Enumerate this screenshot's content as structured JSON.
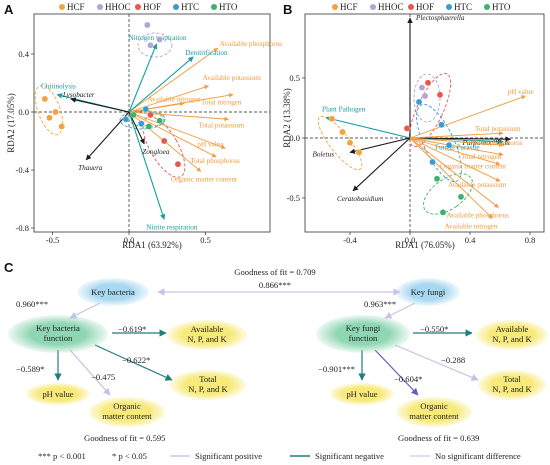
{
  "legend": {
    "groups": [
      {
        "label": "HCF",
        "color": "#f4a23c"
      },
      {
        "label": "HHOC",
        "color": "#b3a3d6"
      },
      {
        "label": "HOF",
        "color": "#e9574a"
      },
      {
        "label": "HTC",
        "color": "#3a9bd0"
      },
      {
        "label": "HTO",
        "color": "#3bb36a"
      }
    ]
  },
  "panels": {
    "A": "A",
    "B": "B",
    "C": "C"
  },
  "chart_data": [
    {
      "type": "scatter",
      "panel": "A",
      "title": "",
      "xlabel": "RDA1 (63.92%)",
      "ylabel": "RDA2 (17.05%)",
      "xlim": [
        -0.62,
        0.92
      ],
      "ylim": [
        -0.82,
        0.68
      ],
      "xticks": [
        "-0.5",
        "0.0",
        "0.5"
      ],
      "yticks": [
        "-0.8",
        "-0.4",
        "0.0",
        "0.4"
      ],
      "biplot_arrows": [
        {
          "label": "Available phosphorus",
          "x": 0.58,
          "y": 0.44,
          "kind": "env"
        },
        {
          "label": "Available potassium",
          "x": 0.52,
          "y": 0.18,
          "kind": "env"
        },
        {
          "label": "Total nitrogen",
          "x": 0.68,
          "y": 0.12,
          "kind": "env"
        },
        {
          "label": "Available nitrogen",
          "x": 0.36,
          "y": 0.06,
          "kind": "env"
        },
        {
          "label": "Total potassium",
          "x": 0.65,
          "y": -0.05,
          "kind": "env"
        },
        {
          "label": "pH value",
          "x": 0.63,
          "y": -0.25,
          "kind": "env"
        },
        {
          "label": "Total phosphorus",
          "x": 0.57,
          "y": -0.31,
          "kind": "env"
        },
        {
          "label": "Organic matter content",
          "x": 0.47,
          "y": -0.41,
          "kind": "env"
        },
        {
          "label": "Nitrogen respiration",
          "x": 0.18,
          "y": 0.47,
          "kind": "func"
        },
        {
          "label": "Denitrification",
          "x": 0.42,
          "y": 0.38,
          "kind": "func"
        },
        {
          "label": "Chitinolysis",
          "x": -0.47,
          "y": 0.12,
          "kind": "func"
        },
        {
          "label": "Nitrite respiration",
          "x": 0.23,
          "y": -0.74,
          "kind": "func"
        },
        {
          "label": "Lysobacter",
          "x": -0.38,
          "y": 0.09,
          "kind": "taxon"
        },
        {
          "label": "Thauera",
          "x": -0.28,
          "y": -0.33,
          "kind": "taxon"
        },
        {
          "label": "Zoogloea",
          "x": 0.1,
          "y": -0.22,
          "kind": "taxon"
        }
      ],
      "points": [
        {
          "group": "HCF",
          "x": -0.55,
          "y": 0.09
        },
        {
          "group": "HCF",
          "x": -0.48,
          "y": 0.0
        },
        {
          "group": "HCF",
          "x": -0.44,
          "y": -0.1
        },
        {
          "group": "HCF",
          "x": -0.52,
          "y": -0.04
        },
        {
          "group": "HHOC",
          "x": 0.12,
          "y": 0.6
        },
        {
          "group": "HHOC",
          "x": 0.2,
          "y": 0.5
        },
        {
          "group": "HHOC",
          "x": 0.14,
          "y": 0.46
        },
        {
          "group": "HOF",
          "x": 0.14,
          "y": -0.02
        },
        {
          "group": "HOF",
          "x": 0.23,
          "y": -0.2
        },
        {
          "group": "HOF",
          "x": 0.32,
          "y": -0.36
        },
        {
          "group": "HTC",
          "x": -0.02,
          "y": -0.05
        },
        {
          "group": "HTC",
          "x": 0.08,
          "y": -0.08
        },
        {
          "group": "HTC",
          "x": 0.11,
          "y": 0.02
        },
        {
          "group": "HTO",
          "x": 0.03,
          "y": -0.02
        },
        {
          "group": "HTO",
          "x": 0.13,
          "y": -0.1
        },
        {
          "group": "HTO",
          "x": 0.2,
          "y": -0.06
        }
      ]
    },
    {
      "type": "scatter",
      "panel": "B",
      "title": "",
      "xlabel": "RDA1 (76.05%)",
      "ylabel": "RDA2 (13.38%)",
      "xlim": [
        -0.62,
        0.86
      ],
      "ylim": [
        -0.86,
        1.12
      ],
      "xticks": [
        "-0.4",
        "0.0",
        "0.4",
        "0.8"
      ],
      "yticks": [
        "-0.5",
        "0.0",
        "0.5"
      ],
      "biplot_arrows": [
        {
          "label": "Plectosphaerella",
          "x": 0.0,
          "y": 1.0,
          "kind": "taxon"
        },
        {
          "label": "Plant Pathogen",
          "x": -0.56,
          "y": 0.17,
          "kind": "func"
        },
        {
          "label": "Fungal Parasite",
          "x": 0.62,
          "y": -0.03,
          "kind": "func"
        },
        {
          "label": "Boletus",
          "x": -0.4,
          "y": -0.12,
          "kind": "taxon"
        },
        {
          "label": "Purpureocillium",
          "x": 0.67,
          "y": -0.01,
          "kind": "taxon"
        },
        {
          "label": "Ceratobasidium",
          "x": -0.38,
          "y": -0.44,
          "kind": "taxon"
        },
        {
          "label": "pH value",
          "x": 0.77,
          "y": 0.35,
          "kind": "env"
        },
        {
          "label": "Total potassium",
          "x": 0.62,
          "y": 0.04,
          "kind": "env"
        },
        {
          "label": "Total phosphorus",
          "x": 0.62,
          "y": -0.06,
          "kind": "env"
        },
        {
          "label": "Total nitrogen",
          "x": 0.62,
          "y": -0.14,
          "kind": "env"
        },
        {
          "label": "Organic matter content",
          "x": 0.6,
          "y": -0.22,
          "kind": "env"
        },
        {
          "label": "Available potassium",
          "x": 0.6,
          "y": -0.36,
          "kind": "env"
        },
        {
          "label": "Available phosphorus",
          "x": 0.59,
          "y": -0.58,
          "kind": "env"
        },
        {
          "label": "Available nitrogen",
          "x": 0.55,
          "y": -0.67,
          "kind": "env"
        }
      ],
      "points": [
        {
          "group": "HCF",
          "x": -0.52,
          "y": 0.16
        },
        {
          "group": "HCF",
          "x": -0.45,
          "y": 0.05
        },
        {
          "group": "HCF",
          "x": -0.4,
          "y": -0.04
        },
        {
          "group": "HCF",
          "x": -0.34,
          "y": -0.12
        },
        {
          "group": "HHOC",
          "x": 0.08,
          "y": 0.42
        },
        {
          "group": "HHOC",
          "x": 0.1,
          "y": 0.35
        },
        {
          "group": "HOF",
          "x": 0.12,
          "y": 0.46
        },
        {
          "group": "HOF",
          "x": 0.2,
          "y": 0.36
        },
        {
          "group": "HOF",
          "x": -0.02,
          "y": 0.08
        },
        {
          "group": "HTC",
          "x": 0.06,
          "y": 0.3
        },
        {
          "group": "HTC",
          "x": 0.21,
          "y": 0.11
        },
        {
          "group": "HTC",
          "x": 0.26,
          "y": -0.06
        },
        {
          "group": "HTC",
          "x": 0.15,
          "y": -0.2
        },
        {
          "group": "HTO",
          "x": 0.18,
          "y": -0.34
        },
        {
          "group": "HTO",
          "x": 0.22,
          "y": -0.62
        },
        {
          "group": "HTO",
          "x": 0.34,
          "y": -0.49
        }
      ]
    }
  ],
  "pathways": {
    "fit_top": "Goodness of fit = 0.709",
    "top_link": "0.866***",
    "left": {
      "root": "Key bacteria",
      "function": "Key bacteria function",
      "avail": "Available N, P, and K",
      "total": "Total N, P, and K",
      "ph": "pH value",
      "om": "Organic matter content",
      "c_root_func": "0.960***",
      "c_func_avail": "−0.619*",
      "c_func_total": "−0.622*",
      "c_func_ph": "−0.589*",
      "c_func_om": "−0.475",
      "fit": "Goodness of fit = 0.595"
    },
    "right": {
      "root": "Key fungi",
      "function": "Key fungi function",
      "avail": "Available N, P, and K",
      "total": "Total N, P, and K",
      "ph": "pH value",
      "om": "Organic matter content",
      "c_root_func": "0.963***",
      "c_func_avail": "−0.550*",
      "c_func_total": "−0.288",
      "c_func_ph": "−0.901***",
      "c_func_om": "−0.604*",
      "fit": "Goodness of fit = 0.639"
    },
    "footer": {
      "sig3": "*** p < 0.001",
      "sig1": "* p < 0.05",
      "pos": "Significant positive",
      "neg": "Significant negative",
      "none": "No significant difference"
    }
  },
  "colors": {
    "env": "#f39a3c",
    "func": "#169ea6",
    "taxon": "#1b1b1b",
    "positive": "#c9c3ea",
    "negative": "#1f7f78",
    "nosig": "#d9d2f0",
    "bubble_blue": "#a8d8f0",
    "bubble_green": "#8fd6b3",
    "bubble_yellow": "#f7e97a",
    "ellipse_text_positive": "#7b6fc3"
  }
}
